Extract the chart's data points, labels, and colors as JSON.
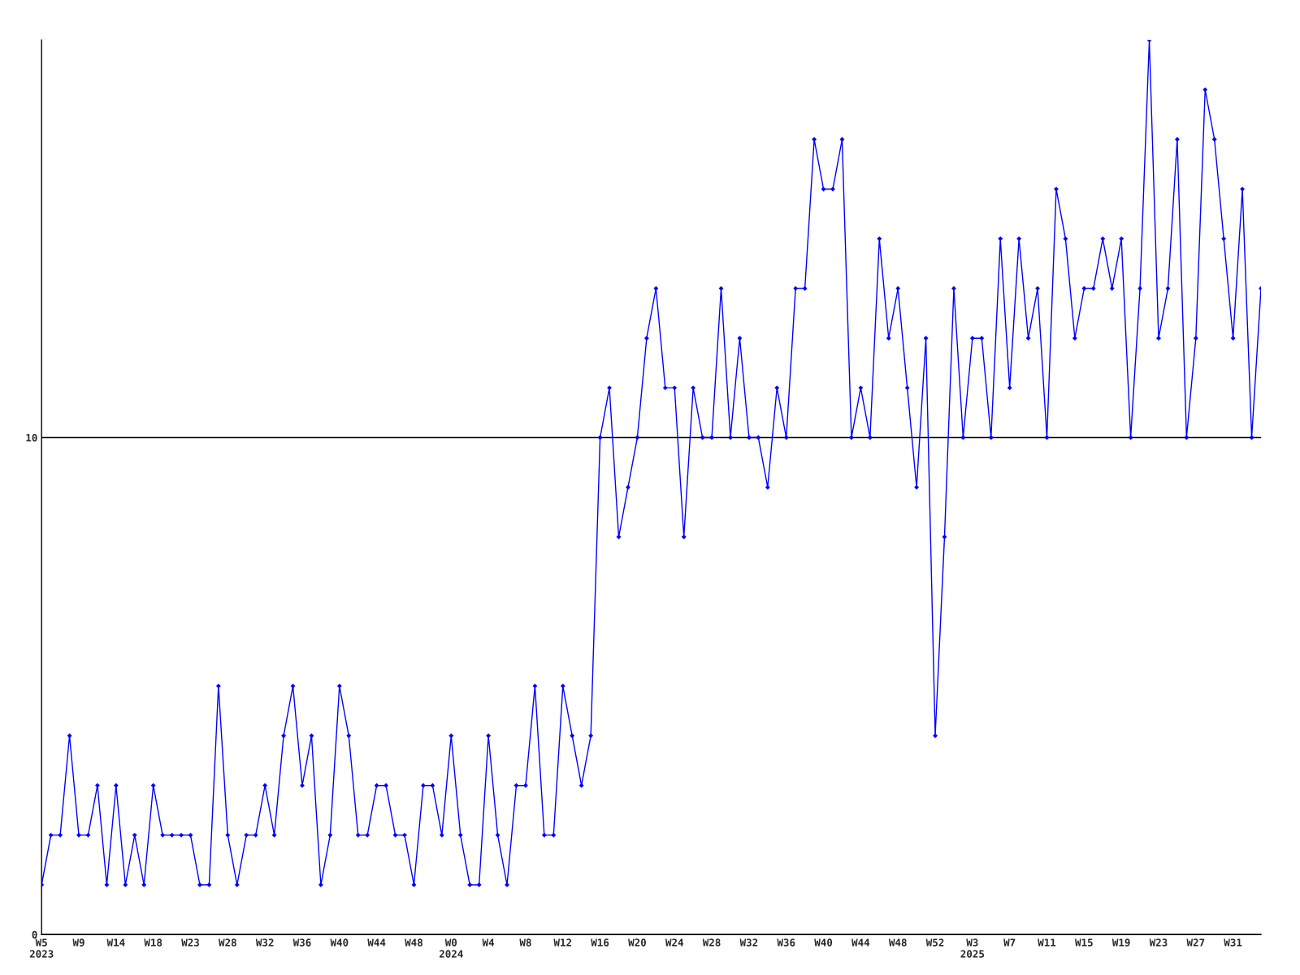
{
  "chart_data": {
    "type": "line",
    "categories": [
      "W5\n2023",
      null,
      null,
      null,
      "W9",
      null,
      null,
      null,
      "W14",
      null,
      null,
      null,
      "W18",
      null,
      null,
      null,
      "W23",
      null,
      null,
      null,
      "W28",
      null,
      null,
      null,
      "W32",
      null,
      null,
      null,
      "W36",
      null,
      null,
      null,
      "W40",
      null,
      null,
      null,
      "W44",
      null,
      null,
      null,
      "W48",
      null,
      null,
      null,
      "W0\n2024",
      null,
      null,
      null,
      "W4",
      null,
      null,
      null,
      "W8",
      null,
      null,
      null,
      "W12",
      null,
      null,
      null,
      "W16",
      null,
      null,
      null,
      "W20",
      null,
      null,
      null,
      "W24",
      null,
      null,
      null,
      "W28",
      null,
      null,
      null,
      "W32",
      null,
      null,
      null,
      "W36",
      null,
      null,
      null,
      "W40",
      null,
      null,
      null,
      "W44",
      null,
      null,
      null,
      "W48",
      null,
      null,
      null,
      "W52",
      null,
      null,
      null,
      "W3\n2025",
      null,
      null,
      null,
      "W7",
      null,
      null,
      null,
      "W11",
      null,
      null,
      null,
      "W15",
      null,
      null,
      null,
      "W19",
      null,
      null,
      null,
      "W23",
      null,
      null,
      null,
      "W27",
      null,
      null,
      null,
      "W31",
      null,
      null,
      null
    ],
    "series": [
      {
        "color": "#0000ff",
        "values": [
          1,
          2,
          2,
          4,
          2,
          2,
          3,
          1,
          3,
          1,
          2,
          1,
          3,
          2,
          2,
          2,
          2,
          1,
          1,
          5,
          2,
          1,
          2,
          2,
          3,
          2,
          4,
          5,
          3,
          4,
          1,
          2,
          5,
          4,
          2,
          2,
          3,
          3,
          2,
          2,
          1,
          3,
          3,
          2,
          4,
          2,
          1,
          1,
          4,
          2,
          1,
          3,
          3,
          5,
          2,
          2,
          5,
          4,
          3,
          4,
          10,
          11,
          8,
          9,
          10,
          12,
          13,
          11,
          11,
          8,
          11,
          10,
          10,
          13,
          10,
          12,
          10,
          10,
          9,
          11,
          10,
          13,
          13,
          16,
          15,
          15,
          16,
          10,
          11,
          10,
          14,
          12,
          13,
          11,
          9,
          12,
          4,
          8,
          13,
          10,
          12,
          12,
          10,
          14,
          11,
          14,
          12,
          13,
          10,
          15,
          14,
          12,
          13,
          13,
          14,
          13,
          14,
          10,
          13,
          18,
          12,
          13,
          16,
          10,
          12,
          17,
          16,
          14,
          12,
          15,
          10,
          13
        ]
      }
    ],
    "ylim": [
      0,
      18
    ],
    "yticks": [
      0,
      10
    ],
    "grid": "y",
    "marker": "diamond",
    "line_style": "solid"
  }
}
